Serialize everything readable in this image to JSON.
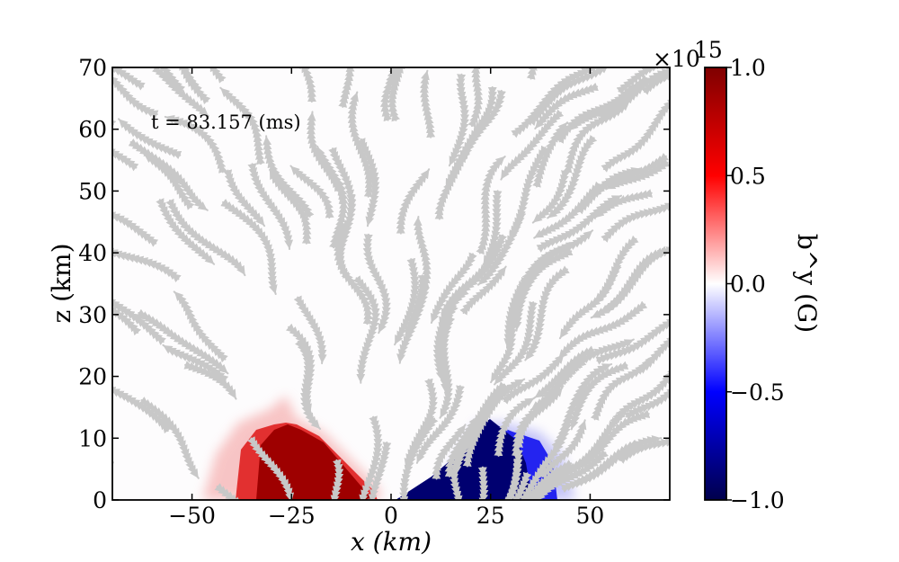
{
  "chart_data": {
    "type": "heatmap",
    "title": "",
    "annotation": "t = 83.157 (ms)",
    "xlabel": "x (km)",
    "ylabel": "z (km)",
    "xlim": [
      -70,
      70
    ],
    "ylim": [
      0,
      70
    ],
    "xticks": [
      "-50",
      "-25",
      "0",
      "25",
      "50"
    ],
    "xtick_values": [
      -50,
      -25,
      0,
      25,
      50
    ],
    "yticks": [
      "0",
      "10",
      "20",
      "30",
      "40",
      "50",
      "60",
      "70"
    ],
    "ytick_values": [
      0,
      10,
      20,
      30,
      40,
      50,
      60,
      70
    ],
    "colorbar": {
      "label": "b^y (G)",
      "exponent_label": "×10",
      "exponent": "15",
      "range": [
        -1.0,
        1.0
      ],
      "ticks": [
        "1.0",
        "0.5",
        "0.0",
        "−0.5",
        "−1.0"
      ],
      "tick_values": [
        1.0,
        0.5,
        0.0,
        -0.5,
        -1.0
      ],
      "colormap": "seismic",
      "colors": {
        "max": "#7f0000",
        "upper": "#ff0000",
        "mid": "#ffffff",
        "lower": "#0000ff",
        "min": "#00004c"
      }
    },
    "streamline_color": "#c8c8c8",
    "regions": [
      {
        "name": "positive",
        "value": 1.0,
        "x_range": [
          -40,
          0
        ],
        "z_peak": 12
      },
      {
        "name": "negative",
        "value": -1.0,
        "x_range": [
          5,
          45
        ],
        "z_peak": 13
      }
    ]
  }
}
